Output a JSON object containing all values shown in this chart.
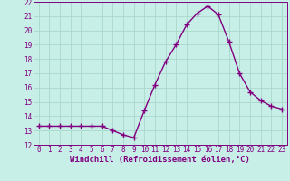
{
  "x": [
    0,
    1,
    2,
    3,
    4,
    5,
    6,
    7,
    8,
    9,
    10,
    11,
    12,
    13,
    14,
    15,
    16,
    17,
    18,
    19,
    20,
    21,
    22,
    23
  ],
  "y": [
    13.3,
    13.3,
    13.3,
    13.3,
    13.3,
    13.3,
    13.3,
    13.0,
    12.7,
    12.5,
    14.4,
    16.2,
    17.8,
    19.0,
    20.4,
    21.2,
    21.7,
    21.1,
    19.2,
    17.0,
    15.7,
    15.1,
    14.7,
    14.5
  ],
  "line_color": "#800080",
  "marker": "+",
  "marker_size": 4,
  "line_width": 1.0,
  "bg_color": "#c8eee8",
  "grid_color": "#a8d8c8",
  "xlabel": "Windchill (Refroidissement éolien,°C)",
  "xlabel_fontsize": 6.5,
  "tick_fontsize": 5.5,
  "ylim": [
    12,
    22
  ],
  "xlim": [
    -0.5,
    23.5
  ],
  "yticks": [
    12,
    13,
    14,
    15,
    16,
    17,
    18,
    19,
    20,
    21,
    22
  ],
  "xtick_labels": [
    "0",
    "1",
    "2",
    "3",
    "4",
    "5",
    "6",
    "7",
    "8",
    "9",
    "10",
    "11",
    "12",
    "13",
    "14",
    "15",
    "16",
    "17",
    "18",
    "19",
    "20",
    "21",
    "22",
    "23"
  ]
}
